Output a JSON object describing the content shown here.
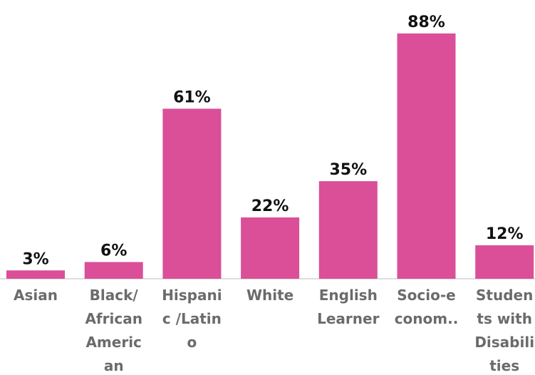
{
  "chart_data": {
    "type": "bar",
    "title": "",
    "xlabel": "",
    "ylabel": "",
    "ylim": [
      0,
      100
    ],
    "grid": false,
    "legend": "none",
    "bar_color": "#DA4F98",
    "categories": [
      [
        "Asian"
      ],
      [
        "Black/",
        "African",
        "Americ",
        "an"
      ],
      [
        "Hispani",
        "c /Latin",
        "o"
      ],
      [
        "White"
      ],
      [
        "English",
        "Learner"
      ],
      [
        "Socio-e",
        "conom.."
      ],
      [
        "Studen",
        "ts with",
        "Disabili",
        "ties"
      ]
    ],
    "values": [
      3,
      6,
      61,
      22,
      35,
      88,
      12
    ],
    "value_labels": [
      "3%",
      "6%",
      "61%",
      "22%",
      "35%",
      "88%",
      "12%"
    ]
  }
}
